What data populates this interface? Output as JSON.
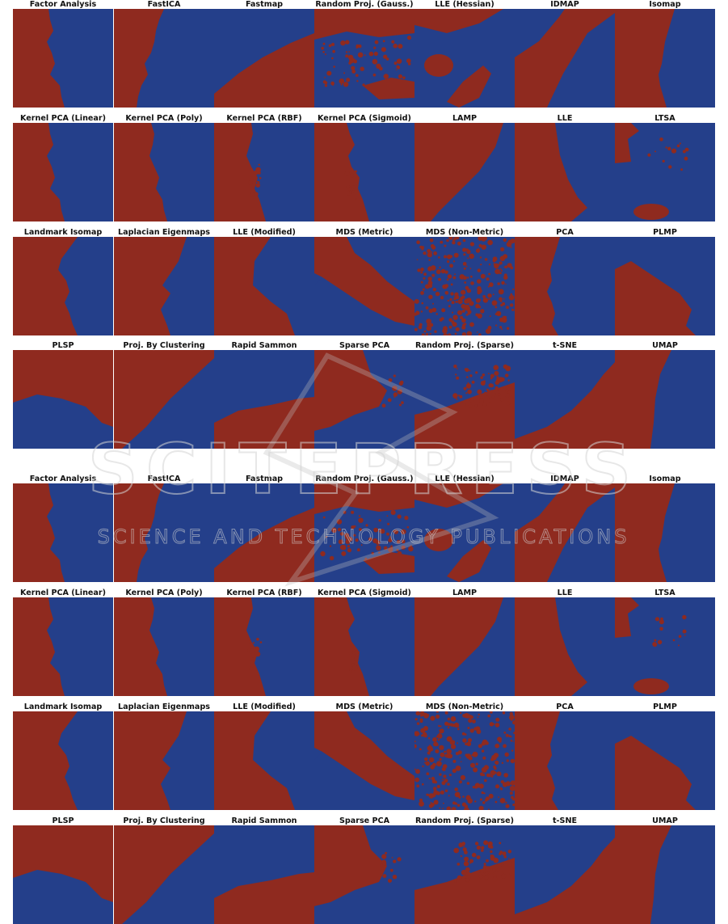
{
  "colors": {
    "class_a": "#8f2a1f",
    "class_b": "#243f8a",
    "watermark": "#c8c8c8"
  },
  "watermark": {
    "brand": "SCITEPRESS",
    "tagline": "SCIENCE AND TECHNOLOGY PUBLICATIONS"
  },
  "figure": {
    "blocks": [
      {
        "rows": [
          [
            "Factor Analysis",
            "FastICA",
            "Fastmap",
            "Random Proj. (Gauss.)",
            "LLE (Hessian)",
            "IDMAP",
            "Isomap"
          ],
          [
            "Kernel PCA (Linear)",
            "Kernel PCA (Poly)",
            "Kernel PCA (RBF)",
            "Kernel PCA (Sigmoid)",
            "LAMP",
            "LLE",
            "LTSA"
          ],
          [
            "Landmark Isomap",
            "Laplacian Eigenmaps",
            "LLE (Modified)",
            "MDS (Metric)",
            "MDS (Non-Metric)",
            "PCA",
            "PLMP"
          ],
          [
            "PLSP",
            "Proj. By Clustering",
            "Rapid Sammon",
            "Sparse PCA",
            "Random Proj. (Sparse)",
            "t-SNE",
            "UMAP"
          ]
        ]
      },
      {
        "rows": [
          [
            "Factor Analysis",
            "FastICA",
            "Fastmap",
            "Random Proj. (Gauss.)",
            "LLE (Hessian)",
            "IDMAP",
            "Isomap"
          ],
          [
            "Kernel PCA (Linear)",
            "Kernel PCA (Poly)",
            "Kernel PCA (RBF)",
            "Kernel PCA (Sigmoid)",
            "LAMP",
            "LLE",
            "LTSA"
          ],
          [
            "Landmark Isomap",
            "Laplacian Eigenmaps",
            "LLE (Modified)",
            "MDS (Metric)",
            "MDS (Non-Metric)",
            "PCA",
            "PLMP"
          ],
          [
            "PLSP",
            "Proj. By Clustering",
            "Rapid Sammon",
            "Sparse PCA",
            "Random Proj. (Sparse)",
            "t-SNE",
            "UMAP"
          ]
        ]
      }
    ]
  }
}
